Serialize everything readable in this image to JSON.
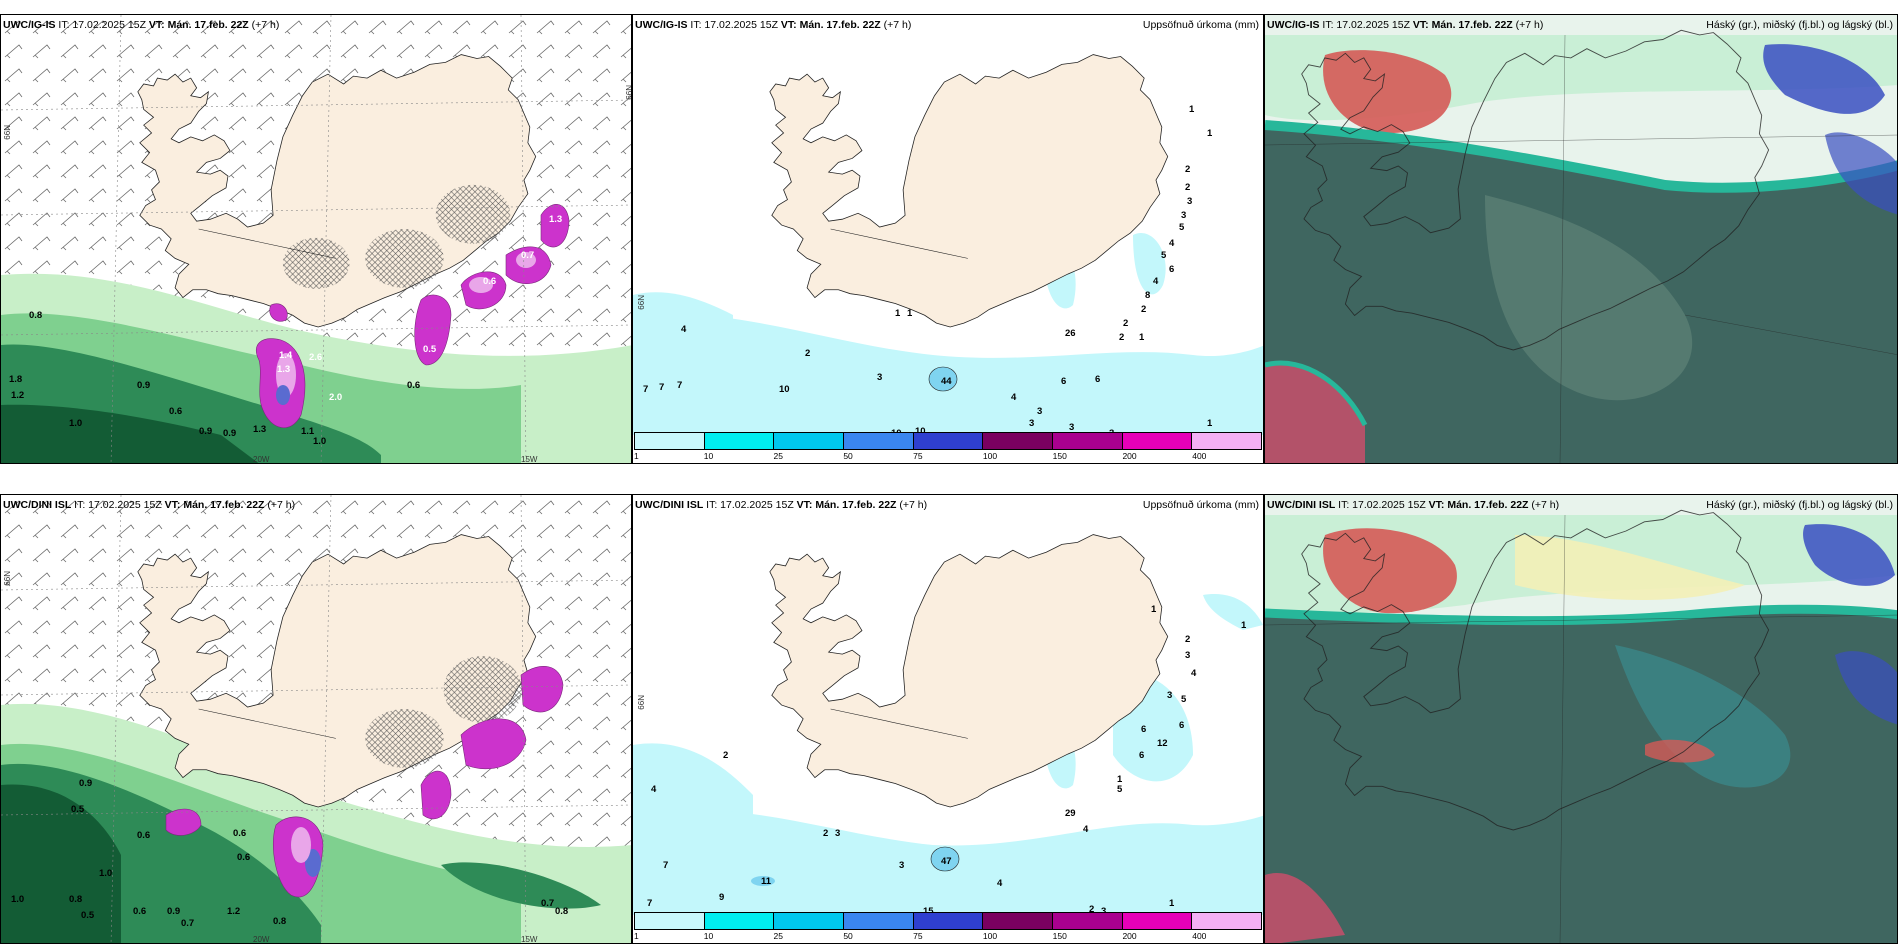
{
  "colors": {
    "land": "#faeedf",
    "wind_green_light": "#c8efc8",
    "wind_green": "#7fd08f",
    "wind_green_dark": "#2e8b57",
    "wind_green_deep": "#135c35",
    "precip_magenta": "#cc33cc",
    "precip_light": "#e9a6e9",
    "cyan_light": "#c3f7fb",
    "cloud_dark": "#3f6660",
    "cloud_teal": "#27b79a",
    "cloud_red": "#d55a56",
    "cloud_blue": "#3a4fc2"
  },
  "rows": [
    {
      "model": "UWC/IG-IS",
      "it": "IT: 17.02.2025 15Z",
      "vt": "VT: Mán. 17.feb. 22Z",
      "lead": "(+7 h)",
      "precip_values": [
        "1",
        "2",
        "2",
        "3",
        "3",
        "5",
        "4",
        "5",
        "6",
        "4",
        "8",
        "2",
        "2",
        "1",
        "2",
        "1",
        "6",
        "2",
        "3",
        "1",
        "44",
        "4",
        "3",
        "3",
        "3",
        "3",
        "6",
        "10",
        "7",
        "7",
        "7",
        "10",
        "10",
        "1",
        "26",
        "4",
        "1"
      ],
      "wind_values": [
        "0.8",
        "0.9",
        "0.6",
        "1.0",
        "1.2",
        "0.9",
        "0.6",
        "1.4",
        "1.3",
        "2.6",
        "2.0",
        "1.3",
        "0.9",
        "1.0",
        "1.1",
        "1.8",
        "0.5",
        "0.6",
        "0.7",
        "1.3"
      ]
    },
    {
      "model": "UWC/DINI ISL",
      "it": "IT: 17.02.2025 15Z",
      "vt": "VT: Mán. 17.feb. 22Z",
      "lead": "(+7 h)",
      "precip_values": [
        "1",
        "1",
        "2",
        "3",
        "4",
        "3",
        "5",
        "6",
        "12",
        "6",
        "6",
        "2",
        "2",
        "3",
        "1",
        "4",
        "2",
        "3",
        "15",
        "11",
        "9",
        "7",
        "7",
        "4",
        "47",
        "3",
        "5",
        "4",
        "1",
        "29"
      ],
      "wind_values": [
        "0.9",
        "0.5",
        "0.6",
        "0.7",
        "1.0",
        "0.8",
        "0.6",
        "0.9",
        "0.7",
        "0.8",
        "0.6",
        "0.5",
        "1.0",
        "1.2",
        "0.6",
        "0.8"
      ]
    }
  ],
  "titles": {
    "precip": "Uppsöfnuð úrkoma (mm)",
    "clouds": "Háský (gr.), miðský (fj.bl.) og lágský (bl.)"
  },
  "axes": {
    "lat_label": "66N",
    "lon_labels": [
      "20W",
      "15W"
    ]
  },
  "colorbar": {
    "labels": [
      "1",
      "10",
      "25",
      "50",
      "75",
      "100",
      "150",
      "200",
      "400"
    ],
    "colors": [
      "#c9f8fc",
      "#00eef0",
      "#00c8ee",
      "#3a86f0",
      "#2f3fd0",
      "#7a0060",
      "#a8008f",
      "#e600b8",
      "#f4b0f4"
    ]
  }
}
